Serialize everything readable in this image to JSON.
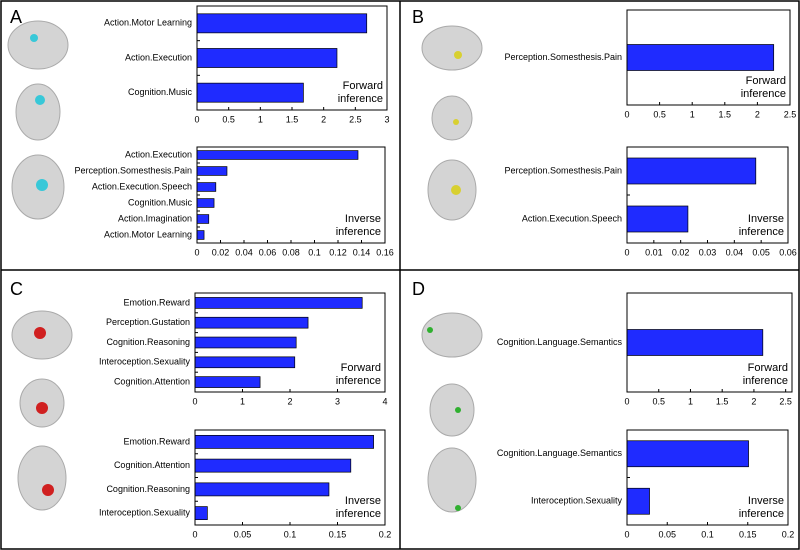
{
  "panel_labels": [
    "A",
    "B",
    "C",
    "D"
  ],
  "chart_data": [
    {
      "type": "bar",
      "orientation": "horizontal",
      "color": "#1f2bff",
      "categories": [
        "Action.Motor Learning",
        "Action.Execution",
        "Cognition.Music"
      ],
      "values": [
        2.68,
        2.21,
        1.68
      ],
      "xlim": [
        0,
        3
      ],
      "xticks": [
        0,
        0.5,
        1,
        1.5,
        2,
        2.5,
        3
      ],
      "annotation": [
        "Forward",
        "inference"
      ]
    },
    {
      "type": "bar",
      "orientation": "horizontal",
      "color": "#1f2bff",
      "categories": [
        "Action.Execution",
        "Perception.Somesthesis.Pain",
        "Action.Execution.Speech",
        "Cognition.Music",
        "Action.Imagination",
        "Action.Motor Learning"
      ],
      "values": [
        0.137,
        0.0255,
        0.016,
        0.0145,
        0.01,
        0.006
      ],
      "xlim": [
        0,
        0.16
      ],
      "xticks": [
        0,
        0.02,
        0.04,
        0.06,
        0.08,
        0.1,
        0.12,
        0.14,
        0.16
      ],
      "annotation": [
        "Inverse",
        "inference"
      ]
    },
    {
      "type": "bar",
      "orientation": "horizontal",
      "color": "#1f2bff",
      "categories": [
        "Perception.Somesthesis.Pain"
      ],
      "values": [
        2.25
      ],
      "xlim": [
        0,
        2.5
      ],
      "xticks": [
        0,
        0.5,
        1,
        1.5,
        2,
        2.5
      ],
      "annotation": [
        "Forward",
        "inference"
      ]
    },
    {
      "type": "bar",
      "orientation": "horizontal",
      "color": "#1f2bff",
      "categories": [
        "Perception.Somesthesis.Pain",
        "Action.Execution.Speech"
      ],
      "values": [
        0.048,
        0.0227
      ],
      "xlim": [
        0,
        0.06
      ],
      "xticks": [
        0,
        0.01,
        0.02,
        0.03,
        0.04,
        0.05,
        0.06
      ],
      "annotation": [
        "Inverse",
        "inference"
      ]
    },
    {
      "type": "bar",
      "orientation": "horizontal",
      "color": "#1f2bff",
      "categories": [
        "Emotion.Reward",
        "Perception.Gustation",
        "Cognition.Reasoning",
        "Interoception.Sexuality",
        "Cognition.Attention"
      ],
      "values": [
        3.52,
        2.38,
        2.13,
        2.1,
        1.37
      ],
      "xlim": [
        0,
        4
      ],
      "xticks": [
        0,
        1,
        2,
        3,
        4
      ],
      "annotation": [
        "Forward",
        "inference"
      ]
    },
    {
      "type": "bar",
      "orientation": "horizontal",
      "color": "#1f2bff",
      "categories": [
        "Emotion.Reward",
        "Cognition.Attention",
        "Cognition.Reasoning",
        "Interoception.Sexuality"
      ],
      "values": [
        0.188,
        0.164,
        0.141,
        0.013
      ],
      "xlim": [
        0,
        0.2
      ],
      "xticks": [
        0,
        0.05,
        0.1,
        0.15,
        0.2
      ],
      "annotation": [
        "Inverse",
        "inference"
      ]
    },
    {
      "type": "bar",
      "orientation": "horizontal",
      "color": "#1f2bff",
      "categories": [
        "Cognition.Language.Semantics"
      ],
      "values": [
        2.14
      ],
      "xlim": [
        0,
        2.6
      ],
      "xticks": [
        0,
        0.5,
        1,
        1.5,
        2,
        2.5
      ],
      "annotation": [
        "Forward",
        "inference"
      ]
    },
    {
      "type": "bar",
      "orientation": "horizontal",
      "color": "#1f2bff",
      "categories": [
        "Cognition.Language.Semantics",
        "Interoception.Sexuality"
      ],
      "values": [
        0.151,
        0.028
      ],
      "xlim": [
        0,
        0.2
      ],
      "xticks": [
        0,
        0.05,
        0.1,
        0.15,
        0.2
      ],
      "annotation": [
        "Inverse",
        "inference"
      ]
    }
  ]
}
